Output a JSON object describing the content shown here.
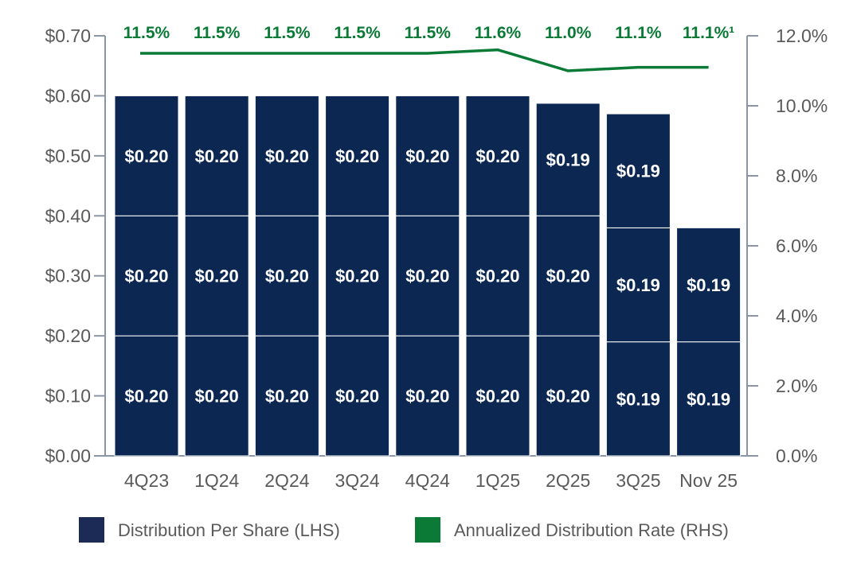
{
  "chart_data": {
    "type": "bar+line",
    "categories": [
      "4Q23",
      "1Q24",
      "2Q24",
      "3Q24",
      "4Q24",
      "1Q25",
      "2Q25",
      "3Q25",
      "Nov 25"
    ],
    "bars": {
      "name": "Distribution Per Share (LHS)",
      "color": "#0c2852",
      "stacks": [
        {
          "values": [
            0.2,
            0.2,
            0.2
          ],
          "labels": [
            "$0.20",
            "$0.20",
            "$0.20"
          ]
        },
        {
          "values": [
            0.2,
            0.2,
            0.2
          ],
          "labels": [
            "$0.20",
            "$0.20",
            "$0.20"
          ]
        },
        {
          "values": [
            0.2,
            0.2,
            0.2
          ],
          "labels": [
            "$0.20",
            "$0.20",
            "$0.20"
          ]
        },
        {
          "values": [
            0.2,
            0.2,
            0.2
          ],
          "labels": [
            "$0.20",
            "$0.20",
            "$0.20"
          ]
        },
        {
          "values": [
            0.2,
            0.2,
            0.2
          ],
          "labels": [
            "$0.20",
            "$0.20",
            "$0.20"
          ]
        },
        {
          "values": [
            0.2,
            0.2,
            0.2
          ],
          "labels": [
            "$0.20",
            "$0.20",
            "$0.20"
          ]
        },
        {
          "values": [
            0.2,
            0.2,
            0.1875
          ],
          "labels": [
            "$0.20",
            "$0.20",
            "$0.19"
          ]
        },
        {
          "values": [
            0.19,
            0.19,
            0.19
          ],
          "labels": [
            "$0.19",
            "$0.19",
            "$0.19"
          ]
        },
        {
          "values": [
            0.19,
            0.19
          ],
          "labels": [
            "$0.19",
            "$0.19"
          ]
        }
      ]
    },
    "line": {
      "name": "Annualized Distribution Rate (RHS)",
      "color": "#0a7a36",
      "values": [
        11.5,
        11.5,
        11.5,
        11.5,
        11.5,
        11.6,
        11.0,
        11.1,
        11.1
      ],
      "labels": [
        "11.5%",
        "11.5%",
        "11.5%",
        "11.5%",
        "11.5%",
        "11.6%",
        "11.0%",
        "11.1%",
        "11.1%¹"
      ]
    },
    "left_axis": {
      "ylim": [
        0,
        0.7
      ],
      "ticks": [
        "$0.00",
        "$0.10",
        "$0.20",
        "$0.30",
        "$0.40",
        "$0.50",
        "$0.60",
        "$0.70"
      ]
    },
    "right_axis": {
      "ylim": [
        0,
        12
      ],
      "ticks": [
        "0.0%",
        "2.0%",
        "4.0%",
        "6.0%",
        "8.0%",
        "10.0%",
        "12.0%"
      ]
    },
    "grid": false,
    "legend_position": "bottom",
    "legend": [
      "Distribution Per Share (LHS)",
      "Annualized Distribution Rate (RHS)"
    ]
  }
}
